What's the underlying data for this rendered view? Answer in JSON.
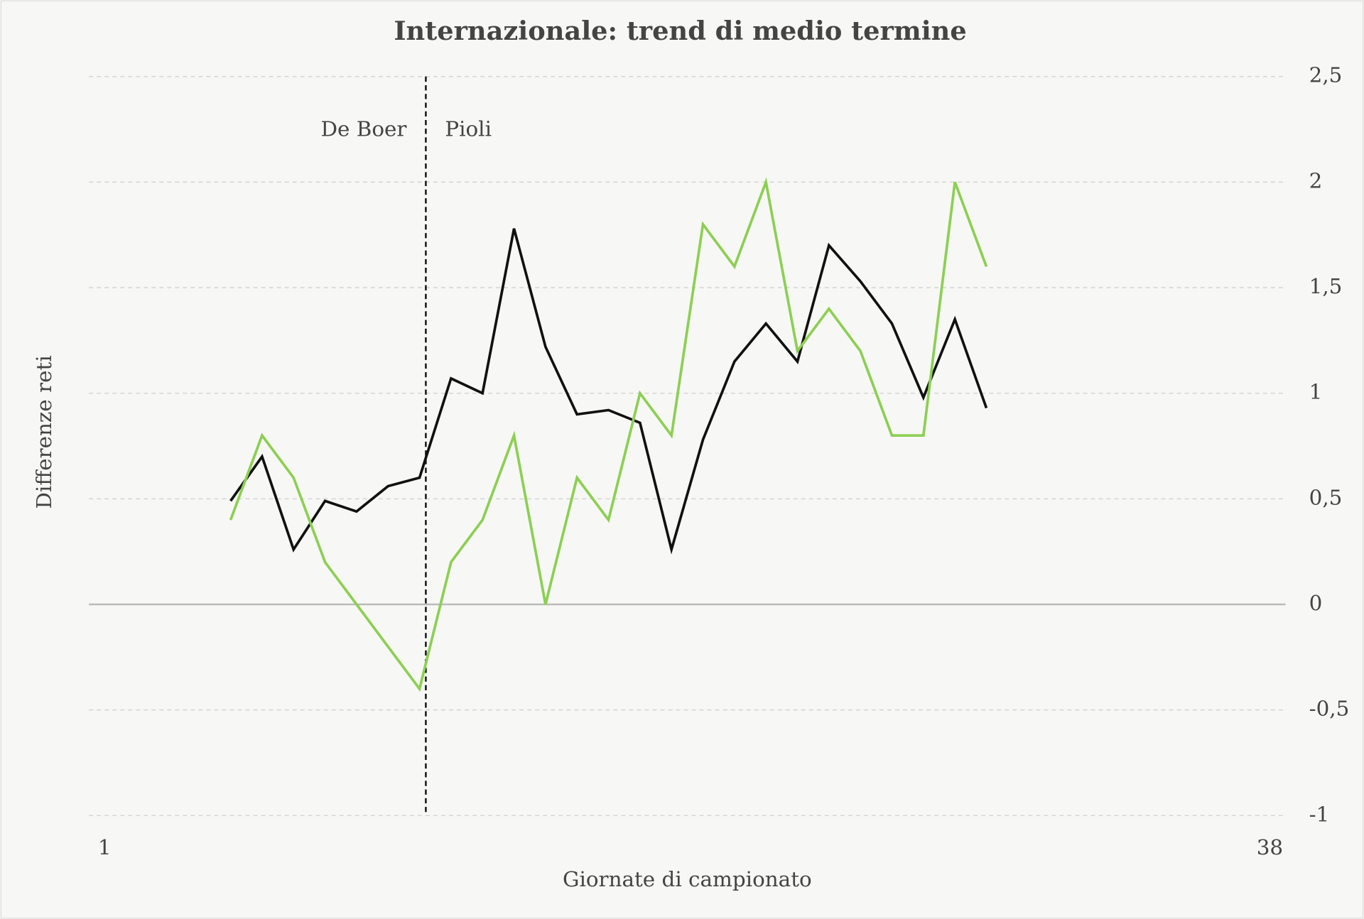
{
  "chart_data": {
    "type": "line",
    "title": "Internazionale: trend di medio termine",
    "x_label": "Giornate di campionato",
    "y_label": "Differenze reti",
    "annotations": [
      {
        "text": "De Boer"
      },
      {
        "text": "Pioli"
      }
    ],
    "divider_x": 11.2,
    "x": [
      5,
      6,
      7,
      8,
      9,
      10,
      11,
      12,
      13,
      14,
      15,
      16,
      17,
      18,
      19,
      20,
      21,
      22,
      23,
      24,
      25,
      26,
      27,
      28,
      29
    ],
    "series": [
      {
        "color": "#111111",
        "values": [
          0.49,
          0.7,
          0.26,
          0.49,
          0.44,
          0.56,
          0.6,
          1.07,
          1.0,
          1.78,
          1.22,
          0.9,
          0.92,
          0.86,
          0.26,
          0.78,
          1.15,
          1.33,
          1.15,
          1.7,
          1.53,
          1.33,
          0.98,
          1.35,
          0.93
        ]
      },
      {
        "color": "#8ccf52",
        "values": [
          0.4,
          0.8,
          0.6,
          0.2,
          0,
          -0.2,
          -0.4,
          0.2,
          0.4,
          0.8,
          0,
          0.6,
          0.4,
          1.0,
          0.8,
          1.8,
          1.6,
          2.0,
          1.2,
          1.4,
          1.2,
          0.8,
          0.8,
          2.0,
          1.6
        ]
      }
    ],
    "xlim": [
      0.5,
      38.5
    ],
    "xticks": [
      1,
      38
    ],
    "ylim": [
      -1,
      2.5
    ],
    "yticks": [
      -1,
      {
        "value": -0.5,
        "label": "-0,5"
      },
      0,
      {
        "value": 0.5,
        "label": "0,5"
      },
      1,
      {
        "value": 1.5,
        "label": "1,5"
      },
      2,
      {
        "value": 2.5,
        "label": "2,5"
      }
    ],
    "grid": true
  }
}
